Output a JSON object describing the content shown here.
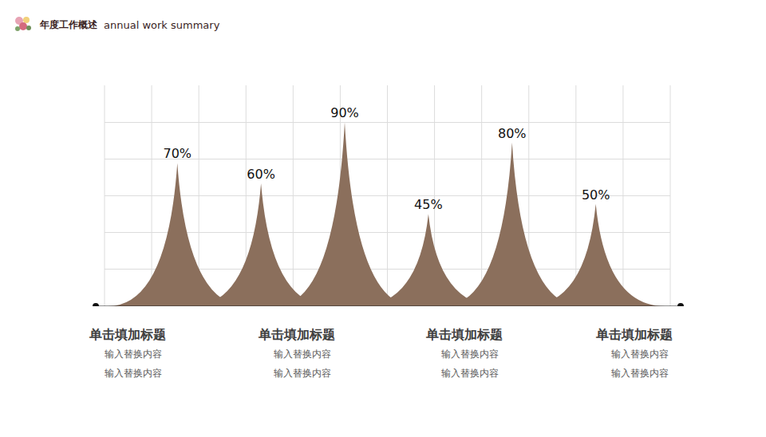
{
  "header": {
    "title": "年度工作概述",
    "subtitle": "annual work summary"
  },
  "chart_data": {
    "type": "area",
    "categories": [
      null,
      null,
      null,
      null,
      null,
      null
    ],
    "values": [
      70,
      60,
      90,
      45,
      80,
      50
    ],
    "value_labels": [
      "70%",
      "60%",
      "90%",
      "45%",
      "80%",
      "50%"
    ],
    "data_labels": true,
    "color": "#8b6f5c",
    "ylim": [
      0,
      108
    ],
    "yticks": [
      0,
      18,
      36,
      54,
      72,
      90,
      108
    ],
    "grid": true,
    "tick_labels": false
  },
  "items": [
    {
      "title": "单击填加标题",
      "lines": [
        "输入替换内容",
        "输入替换内容"
      ]
    },
    {
      "title": "单击填加标题",
      "lines": [
        "输入替换内容",
        "输入替换内容"
      ]
    },
    {
      "title": "单击填加标题",
      "lines": [
        "输入替换内容",
        "输入替换内容"
      ]
    },
    {
      "title": "单击填加标题",
      "lines": [
        "输入替换内容",
        "输入替换内容"
      ]
    }
  ]
}
